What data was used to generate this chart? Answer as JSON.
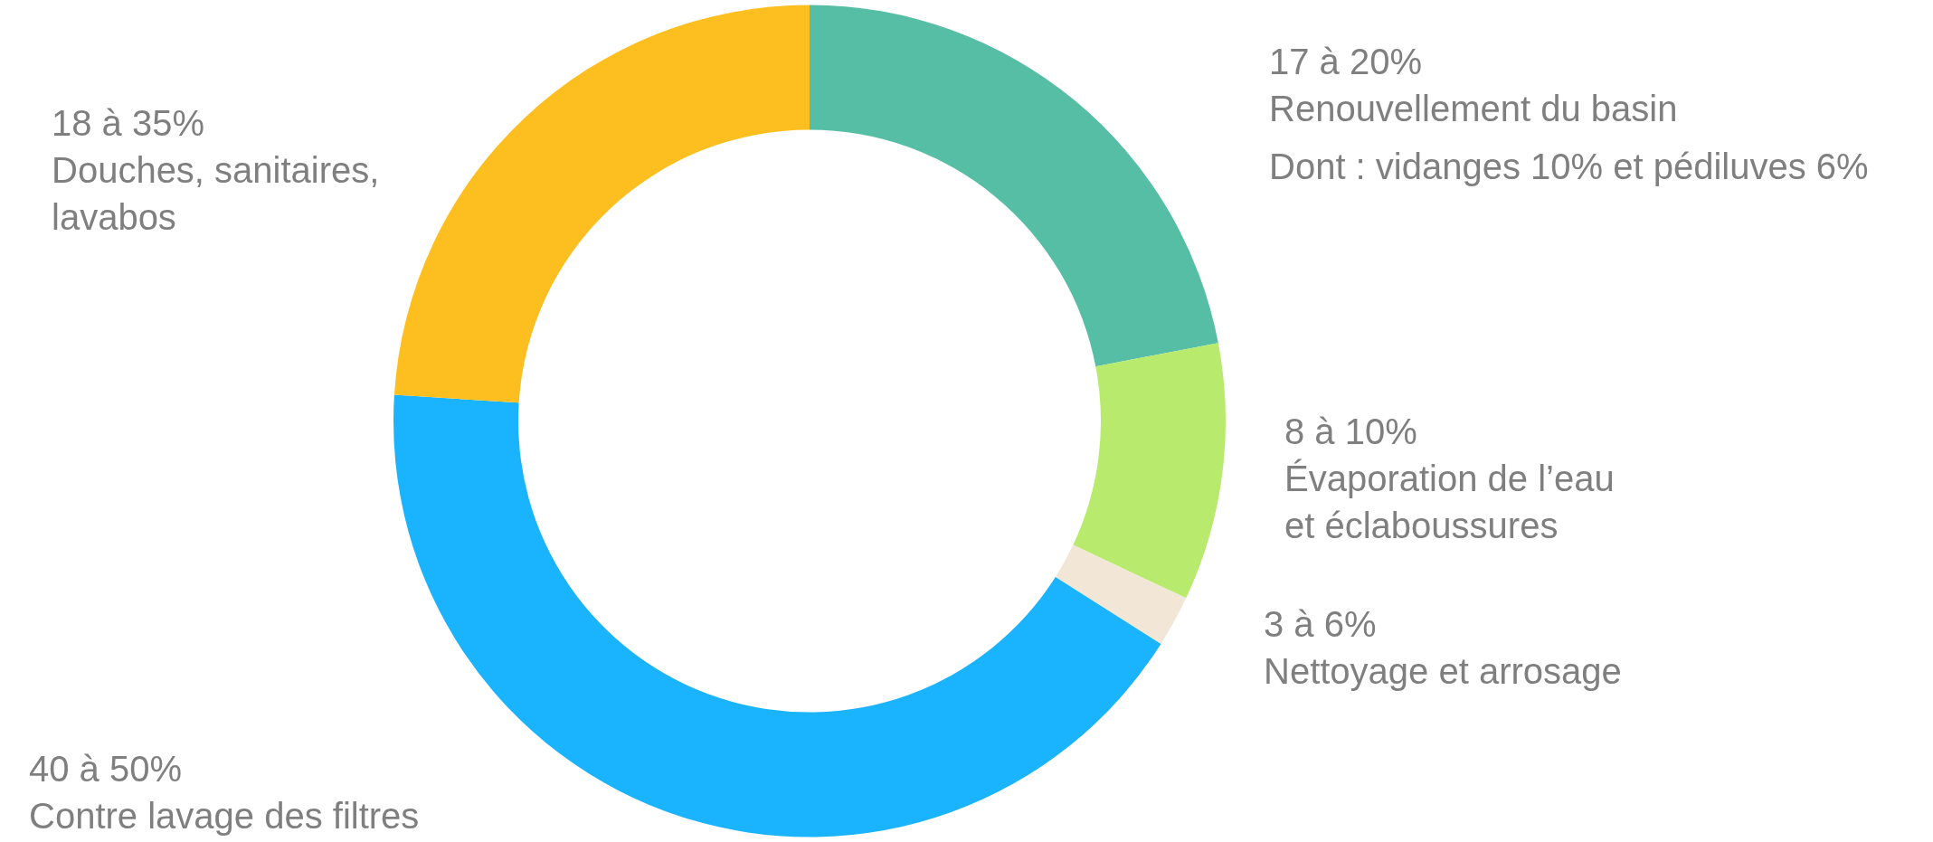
{
  "chart_data": {
    "type": "donut",
    "categories": [
      "Renouvellement du basin",
      "Évaporation de l’eau et éclaboussures",
      "Nettoyage et arrosage",
      "Contre lavage des filtres",
      "Douches, sanitaires, lavabos"
    ],
    "values": [
      22,
      10,
      2,
      42,
      24
    ],
    "colors": [
      "#57bea6",
      "#b8ea6e",
      "#f2e6d6",
      "#1ab3fe",
      "#fdbf1f"
    ],
    "annotations": [
      "17 à 20%",
      "8 à 10%",
      "3 à 6%",
      "40 à 50%",
      "18 à 35%",
      "Dont : vidanges 10% et pédiluves 6%"
    ],
    "legend": false
  }
}
